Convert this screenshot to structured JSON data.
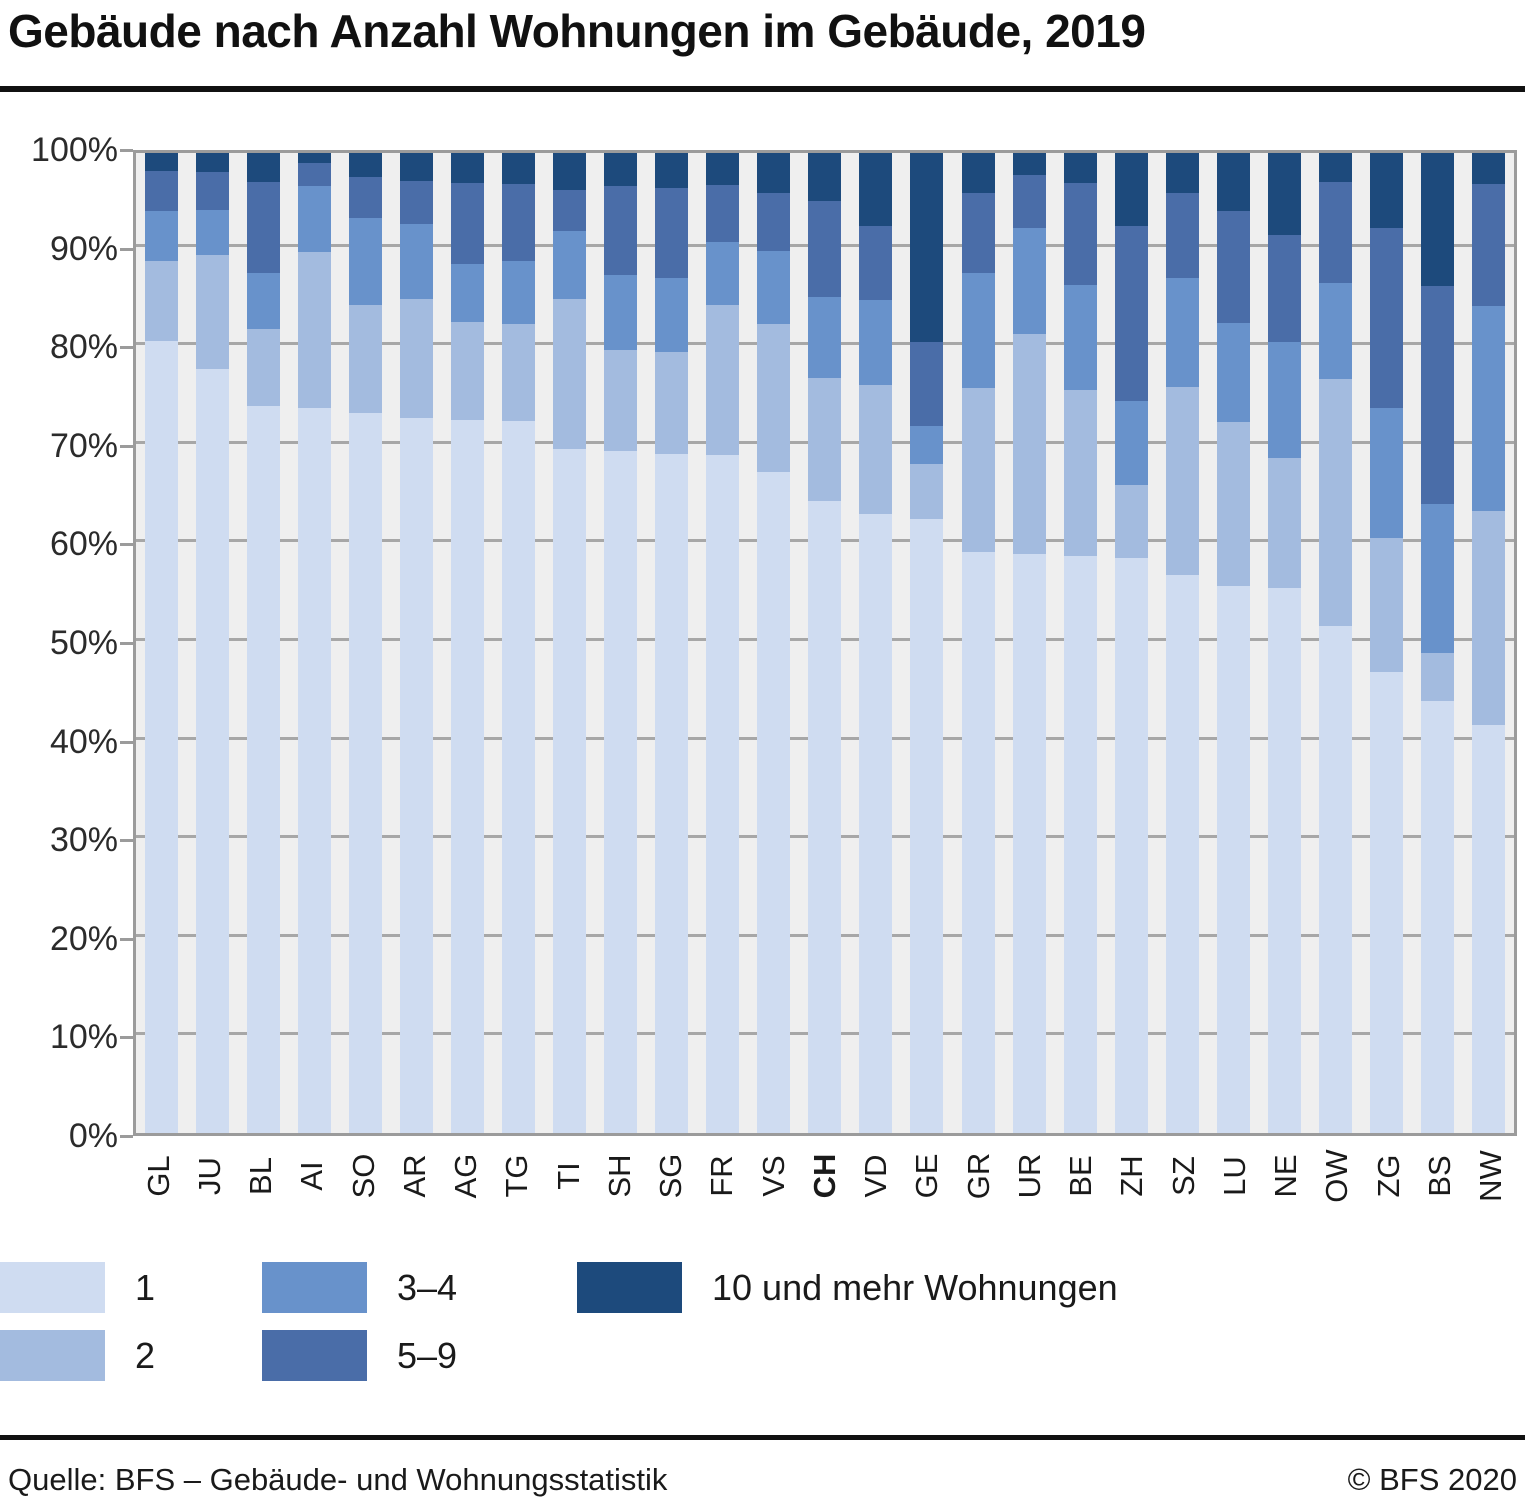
{
  "title": "Gebäude nach Anzahl Wohnungen im Gebäude, 2019",
  "footer": {
    "source": "Quelle: BFS – Gebäude- und Wohnungsstatistik",
    "copyright": "© BFS 2020"
  },
  "colors": {
    "plot_background": "#efefef",
    "gridline": "#a7a7a7",
    "frame": "#9b9b9b",
    "text": "#1a1a1a"
  },
  "chart_data": {
    "type": "bar",
    "stacked": true,
    "unit": "%",
    "grid": true,
    "legend_position": "bottom",
    "ylim": [
      0,
      100
    ],
    "yticks": [
      "0%",
      "10%",
      "20%",
      "30%",
      "40%",
      "50%",
      "60%",
      "70%",
      "80%",
      "90%",
      "100%"
    ],
    "categories": [
      "GL",
      "JU",
      "BL",
      "AI",
      "SO",
      "AR",
      "AG",
      "TG",
      "TI",
      "SH",
      "SG",
      "FR",
      "VS",
      "CH",
      "VD",
      "GE",
      "GR",
      "UR",
      "BE",
      "ZH",
      "SZ",
      "LU",
      "NE",
      "OW",
      "ZG",
      "BS",
      "NW"
    ],
    "emphasized_category": "CH",
    "series": [
      {
        "name": "1",
        "color": "#cfdcf1",
        "values": [
          80.8,
          78.0,
          74.2,
          74.0,
          73.5,
          73.0,
          72.8,
          72.7,
          69.8,
          69.6,
          69.3,
          69.2,
          67.4,
          64.5,
          63.2,
          62.7,
          59.3,
          59.1,
          58.9,
          58.7,
          56.9,
          55.8,
          55.6,
          51.7,
          47.0,
          44.1,
          41.6
        ]
      },
      {
        "name": "2",
        "color": "#a3bbdf",
        "values": [
          8.2,
          11.6,
          7.8,
          15.9,
          11.0,
          12.1,
          10.0,
          9.8,
          15.3,
          10.3,
          10.4,
          15.3,
          15.2,
          12.5,
          13.1,
          5.6,
          16.7,
          22.4,
          16.9,
          7.4,
          19.2,
          16.8,
          13.3,
          25.2,
          13.7,
          4.9,
          21.9
        ]
      },
      {
        "name": "3–4",
        "color": "#6892cb",
        "values": [
          5.1,
          4.6,
          5.8,
          6.7,
          8.9,
          7.7,
          5.9,
          6.5,
          6.9,
          7.6,
          7.5,
          6.4,
          7.4,
          8.3,
          8.7,
          3.8,
          11.8,
          10.8,
          10.7,
          8.6,
          11.1,
          10.1,
          11.8,
          9.8,
          13.3,
          15.2,
          20.9
        ]
      },
      {
        "name": "5–9",
        "color": "#4a6da8",
        "values": [
          4.1,
          3.9,
          9.2,
          2.4,
          4.2,
          4.3,
          8.2,
          7.8,
          4.2,
          9.1,
          9.2,
          5.8,
          5.9,
          9.8,
          7.6,
          8.6,
          8.1,
          5.5,
          10.4,
          17.9,
          8.7,
          11.4,
          10.9,
          10.3,
          18.3,
          22.2,
          12.4
        ]
      },
      {
        "name": "10 und mehr Wohnungen",
        "color": "#1d4a7c",
        "values": [
          1.8,
          1.9,
          3.0,
          1.0,
          2.4,
          2.9,
          3.1,
          3.2,
          3.8,
          3.4,
          3.6,
          3.3,
          4.1,
          4.9,
          7.4,
          19.3,
          4.1,
          2.2,
          3.1,
          7.4,
          4.1,
          5.9,
          8.4,
          3.0,
          7.7,
          13.6,
          3.2
        ]
      }
    ]
  },
  "legend": {
    "items": [
      {
        "series_index": 0,
        "col": 0,
        "row": 0
      },
      {
        "series_index": 1,
        "col": 0,
        "row": 1
      },
      {
        "series_index": 2,
        "col": 1,
        "row": 0
      },
      {
        "series_index": 3,
        "col": 1,
        "row": 1
      },
      {
        "series_index": 4,
        "col": 2,
        "row": 0
      }
    ]
  }
}
